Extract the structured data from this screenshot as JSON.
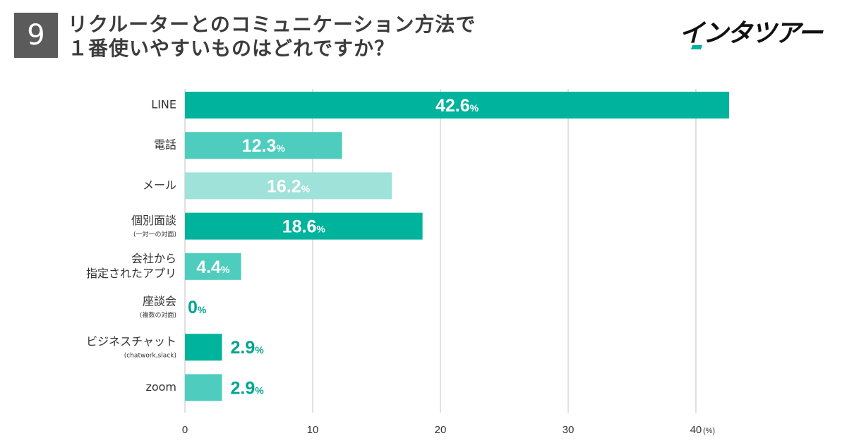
{
  "question_number": "9",
  "title_lines": [
    "リクルーターとのコミュニケーション方法で",
    "１番使いやすいものはどれですか？"
  ],
  "brand": "インタツアー",
  "colors": {
    "teal": "#00b39c",
    "teal_mid": "#4ecdbe",
    "teal_light": "#9ee2d9",
    "value_outside": "#00a58f",
    "grid": "#cccccc",
    "label": "#333333"
  },
  "chart_data": {
    "type": "bar",
    "orientation": "horizontal",
    "unit": "%",
    "xlim": [
      0,
      42.6
    ],
    "xticks": [
      0,
      10,
      20,
      30,
      40
    ],
    "x_unit_label": "(%)",
    "categories": [
      {
        "label": [
          "LINE"
        ],
        "sub": "",
        "value": 42.6,
        "color": "teal"
      },
      {
        "label": [
          "電話"
        ],
        "sub": "",
        "value": 12.3,
        "color": "teal_mid"
      },
      {
        "label": [
          "メール"
        ],
        "sub": "",
        "value": 16.2,
        "color": "teal_light"
      },
      {
        "label": [
          "個別面談"
        ],
        "sub": "(一対一の対面)",
        "value": 18.6,
        "color": "teal"
      },
      {
        "label": [
          "会社から",
          "指定されたアプリ"
        ],
        "sub": "",
        "value": 4.4,
        "color": "teal_mid"
      },
      {
        "label": [
          "座談会"
        ],
        "sub": "(複数の対面)",
        "value": 0,
        "color": "teal_light"
      },
      {
        "label": [
          "ビジネスチャット"
        ],
        "sub": "(chatwork,slack)",
        "value": 2.9,
        "color": "teal"
      },
      {
        "label": [
          "zoom"
        ],
        "sub": "",
        "value": 2.9,
        "color": "teal_mid"
      }
    ]
  }
}
